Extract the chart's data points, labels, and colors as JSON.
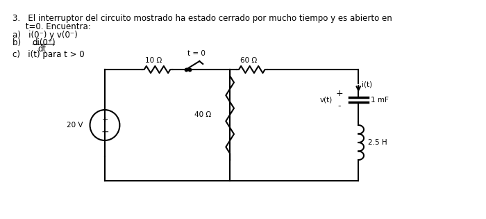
{
  "title_line1": "3.   El interruptor del circuito mostrado ha estado cerrado por mucho tiempo y es abierto en",
  "title_line2": "     t=0. Encuentra:",
  "item_a": "a)   i(0⁻) y v(0⁻)",
  "item_b_num": "di(0⁺)",
  "item_b_den": "dt",
  "item_b_prefix": "b)  ",
  "item_c": "c)   i(t) para t > 0",
  "bg_color": "#ffffff",
  "text_color": "#000000",
  "circuit_color": "#000000",
  "resistor_10": "10 Ω",
  "resistor_60": "60 Ω",
  "resistor_40": "40 Ω",
  "capacitor_label": "1 mF",
  "inductor_label": "2.5 H",
  "voltage_label": "20 V",
  "current_label": "i(t)",
  "voltage_node_label": "v(t)",
  "switch_label": "t = 0",
  "plus_label": "+",
  "minus_label": "-"
}
